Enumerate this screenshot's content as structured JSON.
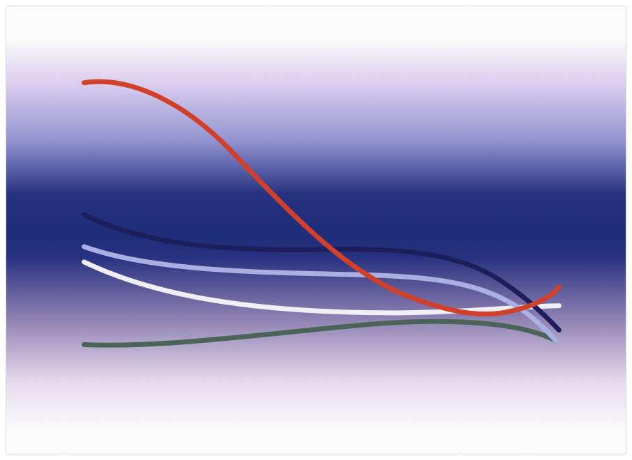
{
  "image": {
    "subject": "abstract-curves-on-gradient",
    "colors": {
      "band_top": "#ffffff",
      "band_light_lavender": "#d9cbee",
      "band_mid_periwinkle": "#8f92d0",
      "band_deep_navy": "#1f2a7c",
      "band_core": "#152675",
      "band_lower_mauve": "#8e7fb1",
      "band_pale_lilac": "#e8dcef",
      "curve_red": "#d2402a",
      "curve_navy": "#1d1f5c",
      "curve_periwinkle": "#aab0e2",
      "curve_white": "#f1eef8",
      "curve_green": "#4c6358"
    },
    "curves": [
      {
        "name": "red-curve",
        "color_key": "curve_red"
      },
      {
        "name": "navy-curve",
        "color_key": "curve_navy"
      },
      {
        "name": "periwinkle-curve",
        "color_key": "curve_periwinkle"
      },
      {
        "name": "white-curve",
        "color_key": "curve_white"
      },
      {
        "name": "green-curve",
        "color_key": "curve_green"
      }
    ]
  }
}
